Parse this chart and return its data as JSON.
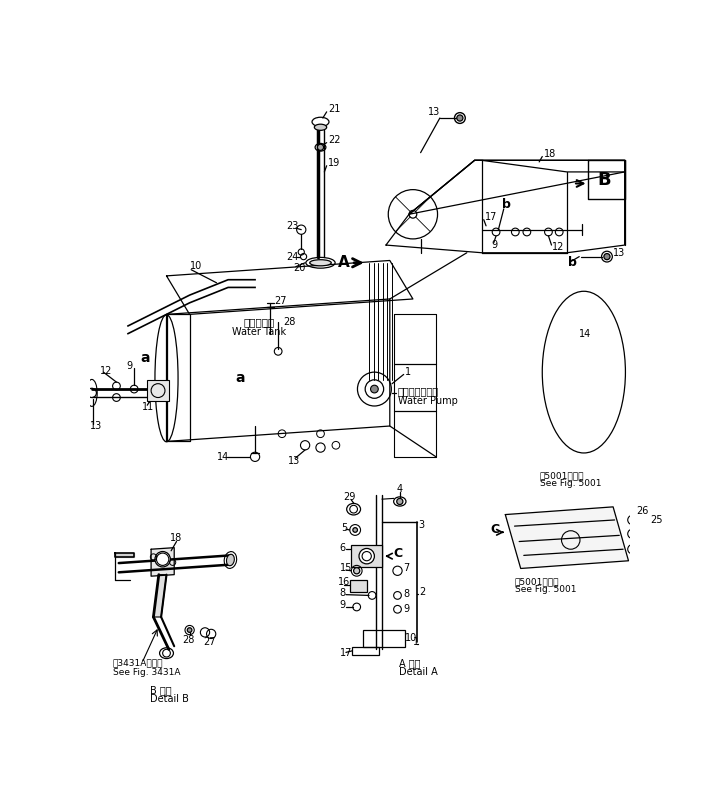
{
  "bg_color": "#ffffff",
  "line_color": "#000000",
  "lw": 0.9,
  "water_tank_ja": "掏水タンク",
  "water_tank_en": "Water Tank",
  "water_pump_ja": "ワォータポンプ",
  "water_pump_en": "Water Pump",
  "detail_a_ja": "A 詳細",
  "detail_a_en": "Detail A",
  "detail_b_ja": "B 詳細",
  "detail_b_en": "Detail B",
  "see_3431a_ja": "第3431A図参照",
  "see_3431a_en": "See Fig. 3431A",
  "see_5001_ja": "第5001図参照",
  "see_5001_en": "See Fig. 5001"
}
